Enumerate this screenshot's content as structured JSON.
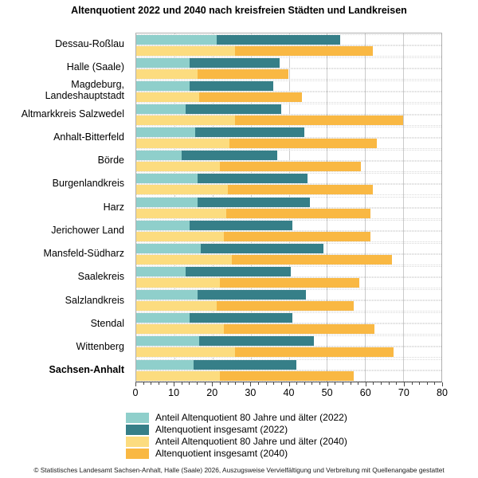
{
  "title": "Altenquotient 2022 und 2040 nach kreisfreien Städten und Landkreisen",
  "footer": "© Statistisches Landesamt Sachsen-Anhalt, Halle (Saale) 2026, Auszugsweise Vervielfältigung und Verbreitung mit Quellenangabe gestattet",
  "colors": {
    "anteil_2022": "#8FCFCB",
    "insgesamt_2022": "#367F88",
    "anteil_2040": "#FCDC7F",
    "insgesamt_2040": "#F9B843",
    "gridline": "#cbcbcb",
    "axis": "#4a4a4a"
  },
  "chart_data": {
    "type": "bar",
    "orientation": "horizontal",
    "title": "Altenquotient 2022 und 2040 nach kreisfreien Städten und Landkreisen",
    "categories": [
      "Dessau-Roßlau",
      "Halle (Saale)",
      "Magdeburg, Landeshauptstadt",
      "Altmarkkreis Salzwedel",
      "Anhalt-Bitterfeld",
      "Börde",
      "Burgenlandkreis",
      "Harz",
      "Jerichower Land",
      "Mansfeld-Südharz",
      "Saalekreis",
      "Salzlandkreis",
      "Stendal",
      "Wittenberg",
      "Sachsen-Anhalt"
    ],
    "bold_category": "Sachsen-Anhalt",
    "series": [
      {
        "name": "Anteil Altenquotient 80 Jahre und älter (2022)",
        "color": "#8FCFCB",
        "values": [
          21,
          14,
          14,
          13,
          15.5,
          12,
          16,
          16,
          14,
          17,
          13,
          16,
          14,
          16.5,
          15
        ]
      },
      {
        "name": "Altenquotient insgesamt (2022)",
        "color": "#367F88",
        "values": [
          53.5,
          37.5,
          36,
          38,
          44,
          37,
          45,
          45.5,
          41,
          49,
          40.5,
          44.5,
          41,
          46.5,
          42
        ]
      },
      {
        "name": "Anteil Altenquotient 80 Jahre und älter (2040)",
        "color": "#FCDC7F",
        "values": [
          26,
          16,
          16.5,
          26,
          24.5,
          22,
          24,
          23.5,
          23,
          25,
          22,
          21,
          23,
          26,
          22
        ]
      },
      {
        "name": "Altenquotient insgesamt (2040)",
        "color": "#F9B843",
        "values": [
          62,
          40,
          43.5,
          70,
          63,
          59,
          62,
          61.5,
          61.5,
          67,
          58.5,
          57,
          62.5,
          67.5,
          57
        ]
      }
    ],
    "stacking_note": "insgesamt bars are drawn from the anteil value to the insgesamt total",
    "xlim": [
      0,
      80
    ],
    "xticks": [
      0,
      10,
      20,
      30,
      40,
      50,
      60,
      70,
      80
    ],
    "minor_tick_step": 2,
    "grid": "vertical-major-solid, horizontal-bar-edges-dotted",
    "legend_position": "bottom-left"
  }
}
